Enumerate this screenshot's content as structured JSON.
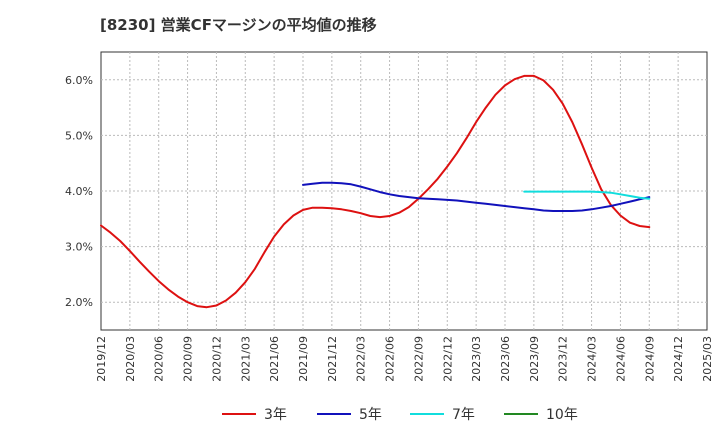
{
  "chart_data": {
    "type": "line",
    "title": "[8230]  営業CFマージンの平均値の推移",
    "xlabel": "",
    "ylabel": "",
    "x_ticks": [
      "2019/12",
      "2020/03",
      "2020/06",
      "2020/09",
      "2020/12",
      "2021/03",
      "2021/06",
      "2021/09",
      "2021/12",
      "2022/03",
      "2022/06",
      "2022/09",
      "2022/12",
      "2023/03",
      "2023/06",
      "2023/09",
      "2023/12",
      "2024/03",
      "2024/06",
      "2024/09",
      "2024/12",
      "2025/03"
    ],
    "xlim": [
      "2019/12",
      "2025/03"
    ],
    "ylim": [
      1.5,
      6.5
    ],
    "y_ticks": [
      2.0,
      3.0,
      4.0,
      5.0,
      6.0
    ],
    "y_tick_labels": [
      "2.0%",
      "3.0%",
      "4.0%",
      "5.0%",
      "6.0%"
    ],
    "grid": true,
    "legend_position": "bottom",
    "series": [
      {
        "name": "3年",
        "color": "#dd1111",
        "points": [
          [
            "2019/12",
            3.38
          ],
          [
            "2020/01",
            3.25
          ],
          [
            "2020/02",
            3.1
          ],
          [
            "2020/03",
            2.92
          ],
          [
            "2020/04",
            2.73
          ],
          [
            "2020/05",
            2.55
          ],
          [
            "2020/06",
            2.38
          ],
          [
            "2020/07",
            2.23
          ],
          [
            "2020/08",
            2.1
          ],
          [
            "2020/09",
            2.0
          ],
          [
            "2020/10",
            1.93
          ],
          [
            "2020/11",
            1.91
          ],
          [
            "2020/12",
            1.94
          ],
          [
            "2021/01",
            2.03
          ],
          [
            "2021/02",
            2.17
          ],
          [
            "2021/03",
            2.36
          ],
          [
            "2021/04",
            2.6
          ],
          [
            "2021/05",
            2.9
          ],
          [
            "2021/06",
            3.18
          ],
          [
            "2021/07",
            3.4
          ],
          [
            "2021/08",
            3.56
          ],
          [
            "2021/09",
            3.66
          ],
          [
            "2021/10",
            3.7
          ],
          [
            "2021/11",
            3.7
          ],
          [
            "2021/12",
            3.69
          ],
          [
            "2022/01",
            3.67
          ],
          [
            "2022/02",
            3.64
          ],
          [
            "2022/03",
            3.6
          ],
          [
            "2022/04",
            3.55
          ],
          [
            "2022/05",
            3.53
          ],
          [
            "2022/06",
            3.55
          ],
          [
            "2022/07",
            3.61
          ],
          [
            "2022/08",
            3.71
          ],
          [
            "2022/09",
            3.86
          ],
          [
            "2022/10",
            4.03
          ],
          [
            "2022/11",
            4.22
          ],
          [
            "2022/12",
            4.44
          ],
          [
            "2023/01",
            4.68
          ],
          [
            "2023/02",
            4.95
          ],
          [
            "2023/03",
            5.24
          ],
          [
            "2023/04",
            5.5
          ],
          [
            "2023/05",
            5.73
          ],
          [
            "2023/06",
            5.9
          ],
          [
            "2023/07",
            6.01
          ],
          [
            "2023/08",
            6.07
          ],
          [
            "2023/09",
            6.07
          ],
          [
            "2023/10",
            5.99
          ],
          [
            "2023/11",
            5.82
          ],
          [
            "2023/12",
            5.57
          ],
          [
            "2024/01",
            5.24
          ],
          [
            "2024/02",
            4.84
          ],
          [
            "2024/03",
            4.42
          ],
          [
            "2024/04",
            4.03
          ],
          [
            "2024/05",
            3.75
          ],
          [
            "2024/06",
            3.56
          ],
          [
            "2024/07",
            3.43
          ],
          [
            "2024/08",
            3.37
          ],
          [
            "2024/09",
            3.35
          ]
        ]
      },
      {
        "name": "5年",
        "color": "#1111bb",
        "points": [
          [
            "2021/09",
            4.11
          ],
          [
            "2021/10",
            4.13
          ],
          [
            "2021/11",
            4.15
          ],
          [
            "2021/12",
            4.15
          ],
          [
            "2022/01",
            4.14
          ],
          [
            "2022/02",
            4.12
          ],
          [
            "2022/03",
            4.08
          ],
          [
            "2022/04",
            4.03
          ],
          [
            "2022/05",
            3.98
          ],
          [
            "2022/06",
            3.94
          ],
          [
            "2022/07",
            3.91
          ],
          [
            "2022/08",
            3.89
          ],
          [
            "2022/09",
            3.87
          ],
          [
            "2022/10",
            3.86
          ],
          [
            "2022/11",
            3.85
          ],
          [
            "2022/12",
            3.84
          ],
          [
            "2023/01",
            3.83
          ],
          [
            "2023/02",
            3.81
          ],
          [
            "2023/03",
            3.79
          ],
          [
            "2023/04",
            3.77
          ],
          [
            "2023/05",
            3.75
          ],
          [
            "2023/06",
            3.73
          ],
          [
            "2023/07",
            3.71
          ],
          [
            "2023/08",
            3.69
          ],
          [
            "2023/09",
            3.67
          ],
          [
            "2023/10",
            3.65
          ],
          [
            "2023/11",
            3.64
          ],
          [
            "2023/12",
            3.64
          ],
          [
            "2024/01",
            3.64
          ],
          [
            "2024/02",
            3.65
          ],
          [
            "2024/03",
            3.67
          ],
          [
            "2024/04",
            3.7
          ],
          [
            "2024/05",
            3.73
          ],
          [
            "2024/06",
            3.77
          ],
          [
            "2024/07",
            3.81
          ],
          [
            "2024/08",
            3.85
          ],
          [
            "2024/09",
            3.89
          ]
        ]
      },
      {
        "name": "7年",
        "color": "#11dddd",
        "points": [
          [
            "2023/08",
            3.99
          ],
          [
            "2023/09",
            3.99
          ],
          [
            "2023/10",
            3.99
          ],
          [
            "2023/11",
            3.99
          ],
          [
            "2023/12",
            3.99
          ],
          [
            "2024/01",
            3.99
          ],
          [
            "2024/02",
            3.99
          ],
          [
            "2024/03",
            3.99
          ],
          [
            "2024/04",
            3.98
          ],
          [
            "2024/05",
            3.97
          ],
          [
            "2024/06",
            3.94
          ],
          [
            "2024/07",
            3.91
          ],
          [
            "2024/08",
            3.88
          ],
          [
            "2024/09",
            3.86
          ]
        ]
      },
      {
        "name": "10年",
        "color": "#228822",
        "points": []
      }
    ]
  }
}
